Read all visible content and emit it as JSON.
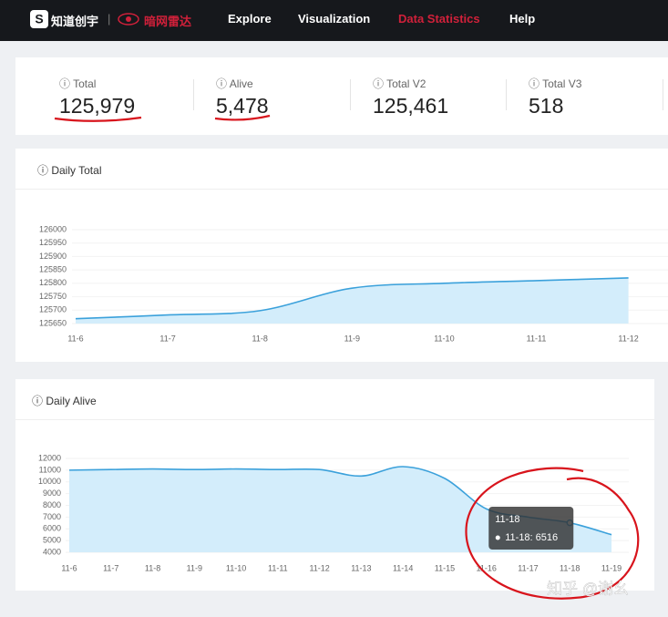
{
  "nav": {
    "logo": "知道创宇",
    "product": "暗网雷达",
    "items": [
      "Explore",
      "Visualization",
      "Data Statistics",
      "Help"
    ],
    "active": 2
  },
  "stats": [
    {
      "label": "Total",
      "value": "125,979"
    },
    {
      "label": "Alive",
      "value": "5,478"
    },
    {
      "label": "Total V2",
      "value": "125,461"
    },
    {
      "label": "Total V3",
      "value": "518"
    }
  ],
  "chart_data": [
    {
      "type": "line",
      "area": true,
      "title": "Daily Total",
      "color": "#3ba1db",
      "fill": "#d3edfb",
      "categories": [
        "11-6",
        "11-7",
        "11-8",
        "11-9",
        "11-10",
        "11-11",
        "11-12"
      ],
      "values": [
        125668,
        125682,
        125698,
        125782,
        125800,
        125810,
        125820
      ],
      "ylim": [
        125650,
        126000
      ],
      "yticks": [
        125650,
        125700,
        125750,
        125800,
        125850,
        125900,
        125950,
        126000
      ]
    },
    {
      "type": "line",
      "area": true,
      "title": "Daily Alive",
      "color": "#3ba1db",
      "fill": "#d3edfb",
      "categories": [
        "11-6",
        "11-7",
        "11-8",
        "11-9",
        "11-10",
        "11-11",
        "11-12",
        "11-13",
        "11-14",
        "11-15",
        "11-16",
        "11-17",
        "11-18",
        "11-19"
      ],
      "values": [
        11000,
        11050,
        11100,
        11050,
        11100,
        11050,
        11050,
        10500,
        11300,
        10300,
        7700,
        7000,
        6516,
        5500
      ],
      "ylim": [
        4000,
        12000
      ],
      "yticks": [
        4000,
        5000,
        6000,
        7000,
        8000,
        9000,
        10000,
        11000,
        12000
      ],
      "tooltip": {
        "title": "11-18",
        "item": "11-18: 6516",
        "index": 12
      }
    }
  ],
  "watermark": "知乎 @谢幺"
}
